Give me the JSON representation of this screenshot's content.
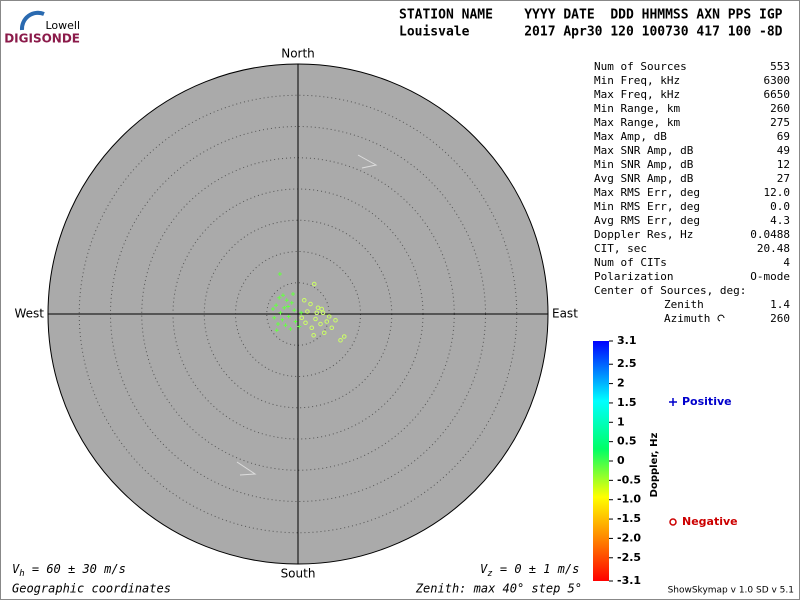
{
  "logo": {
    "top": "Lowell",
    "bottom": "DIGISONDE"
  },
  "header": {
    "line1": "STATION NAME    YYYY DATE  DDD HHMMSS AXN PPS IGP",
    "line2": "Louisvale       2017 Apr30 120 100730 417 100 -8D"
  },
  "stats": [
    [
      "Num of Sources",
      "553"
    ],
    [
      "Min Freq, kHz",
      "6300"
    ],
    [
      "Max Freq, kHz",
      "6650"
    ],
    [
      "Min Range, km",
      "260"
    ],
    [
      "Max Range, km",
      "275"
    ],
    [
      "Max Amp, dB",
      "69"
    ],
    [
      "Max SNR Amp, dB",
      "49"
    ],
    [
      "Min SNR Amp, dB",
      "12"
    ],
    [
      "Avg SNR Amp, dB",
      "27"
    ],
    [
      "Max RMS Err, deg",
      "12.0"
    ],
    [
      "Min RMS Err, deg",
      "0.0"
    ],
    [
      "Avg RMS Err, deg",
      "4.3"
    ],
    [
      "Doppler Res, Hz",
      "0.0488"
    ],
    [
      "CIT, sec",
      "20.48"
    ],
    [
      "Num of CITs",
      "4"
    ],
    [
      "Polarization",
      "O-mode"
    ]
  ],
  "center": {
    "title": "Center of Sources, deg:",
    "zenith_label": "Zenith",
    "zenith": "1.4",
    "azimuth_label": "Azimuth",
    "azimuth": "260"
  },
  "footer": {
    "vh_v": "V",
    "vh_sub": "h",
    "vh_rest": " = 60 ± 30 m/s",
    "vz_v": "V",
    "vz_sub": "z",
    "vz_rest": " = 0 ± 1 m/s",
    "coords": "Geographic coordinates",
    "zenith": "Zenith: max 40°  step 5°",
    "version": "ShowSkymap v 1.0  SD v 5.1"
  },
  "chart_data": {
    "type": "polar-scatter",
    "directions": {
      "north": "North",
      "south": "South",
      "east": "East",
      "west": "West"
    },
    "rlim": [
      0,
      40
    ],
    "rticks": [
      5,
      10,
      15,
      20,
      25,
      30,
      35
    ],
    "colorbar": {
      "label": "Doppler, Hz",
      "clim": [
        -3.1,
        3.1
      ],
      "ticks": [
        3.1,
        2.5,
        2,
        1.5,
        1,
        0.5,
        0,
        {
          "value": -0.5,
          "label": "-0.5"
        },
        {
          "value": -1,
          "label": "-1.0"
        },
        {
          "value": -1.5,
          "label": "-1.5"
        },
        {
          "value": -2,
          "label": "-2.0"
        },
        {
          "value": -2.5,
          "label": "-2.5"
        },
        {
          "value": -3.1,
          "label": "-3.1"
        }
      ]
    },
    "series": [
      {
        "name": "Positive",
        "marker": "plus",
        "color": "#66ff44",
        "legend_color": "#0000cc",
        "x": [
          -2.9,
          -3.0,
          -2.4,
          -1.8,
          -3.5,
          -2.2,
          -1.0,
          -0.6,
          -2.8,
          -1.5,
          -3.8,
          -0.4,
          -2.0,
          -1.2,
          -3.2,
          0.5,
          -0.8,
          -2.5,
          -4.0,
          -1.6,
          0.2,
          -3.4
        ],
        "values": [
          6.4,
          2.6,
          3.0,
          2.2,
          1.4,
          1.0,
          1.8,
          0.6,
          0.2,
          -0.4,
          -0.6,
          -1.2,
          -1.8,
          -2.4,
          -1.6,
          0.2,
          3.2,
          -0.9,
          0.8,
          1.2,
          -2.0,
          -2.6
        ]
      },
      {
        "name": "Negative",
        "marker": "circle",
        "color": "#ccff66",
        "legend_color": "#cc0000",
        "x": [
          2.6,
          1.0,
          2.0,
          3.2,
          4.0,
          5.0,
          1.5,
          2.8,
          3.6,
          4.6,
          6.0,
          1.2,
          2.2,
          5.4,
          3.0,
          0.6,
          6.8,
          7.4,
          4.2,
          3.8,
          2.5
        ],
        "values": [
          4.8,
          2.2,
          1.6,
          1.0,
          0.2,
          -0.4,
          0.4,
          -0.8,
          -1.6,
          -1.2,
          -1.0,
          -1.4,
          -2.2,
          -2.2,
          0.2,
          -0.6,
          -4.2,
          -3.6,
          -3.0,
          0.8,
          -3.4
        ]
      }
    ]
  }
}
